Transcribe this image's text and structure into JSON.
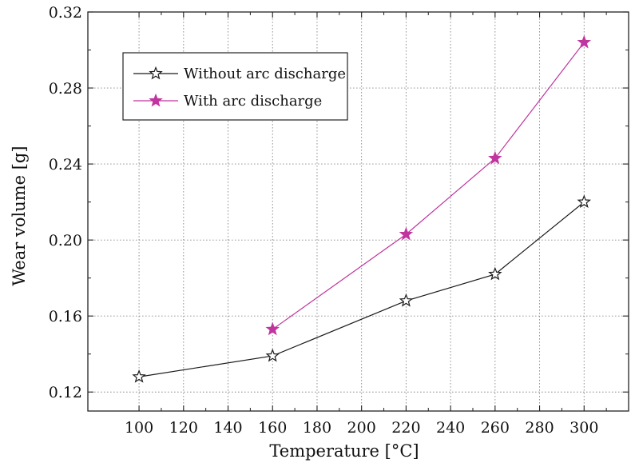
{
  "chart_data": {
    "type": "line",
    "xlabel": "Temperature [°C]",
    "ylabel": "Wear volume [g]",
    "xlim": [
      77,
      320
    ],
    "ylim": [
      0.11,
      0.32
    ],
    "xticks": [
      100,
      120,
      140,
      160,
      180,
      200,
      220,
      240,
      260,
      280,
      300
    ],
    "xtick_labels": [
      "100",
      "120",
      "140",
      "160",
      "180",
      "200",
      "220",
      "240",
      "260",
      "280",
      "300"
    ],
    "yticks": [
      0.12,
      0.16,
      0.2,
      0.24,
      0.28,
      0.32
    ],
    "ytick_labels": [
      "0.12",
      "0.16",
      "0.20",
      "0.24",
      "0.28",
      "0.32"
    ],
    "grid": true,
    "legend_position": "top-left",
    "series": [
      {
        "name": "Without arc discharge",
        "color": "#1a1a1a",
        "marker": "hollow-star",
        "x": [
          100,
          160,
          220,
          260,
          300
        ],
        "y": [
          0.128,
          0.139,
          0.168,
          0.182,
          0.22
        ]
      },
      {
        "name": "With arc discharge",
        "color": "#c0359f",
        "marker": "filled-star",
        "x": [
          160,
          220,
          260,
          300
        ],
        "y": [
          0.153,
          0.203,
          0.243,
          0.304
        ]
      }
    ]
  }
}
